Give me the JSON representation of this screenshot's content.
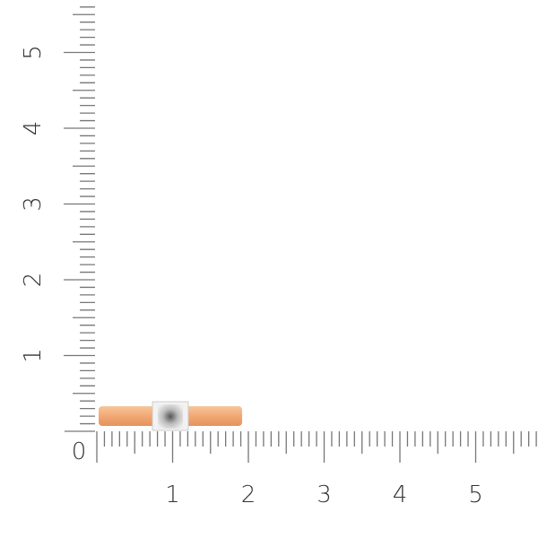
{
  "ruler": {
    "unit_ticks_per_major": 10,
    "x_labels": [
      "0",
      "1",
      "2",
      "3",
      "4",
      "5"
    ],
    "y_labels": [
      "1",
      "2",
      "3",
      "4",
      "5"
    ],
    "x_range": [
      0,
      5.8
    ],
    "y_range": [
      0,
      5.6
    ],
    "tick_color": "#777777"
  },
  "product": {
    "band_color": "#f0a873",
    "stone_setting_color": "#e8e8e8"
  }
}
